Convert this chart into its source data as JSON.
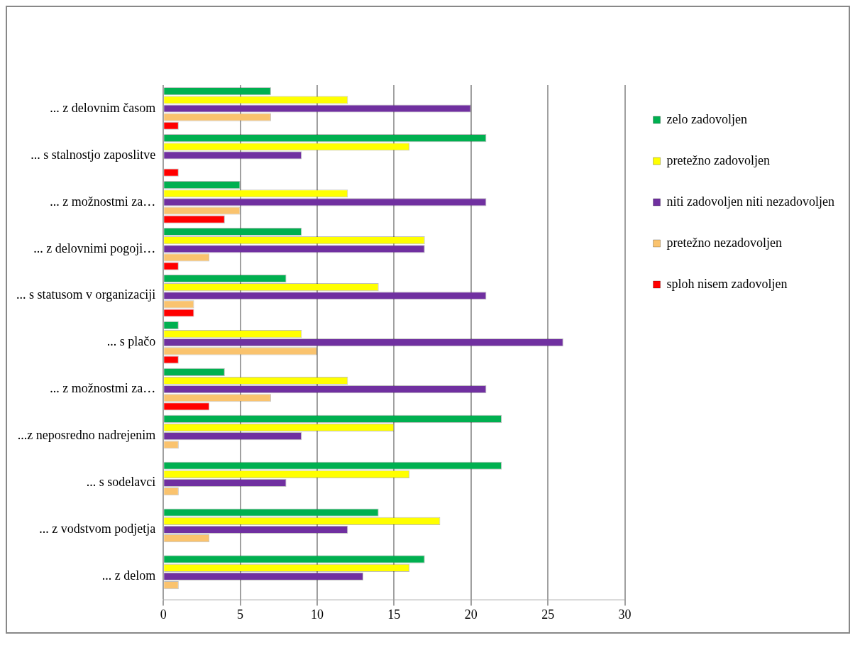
{
  "chart_data": {
    "type": "bar",
    "orientation": "horizontal",
    "categories": [
      "... z delovnim časom",
      "... s stalnostjo zaposlitve",
      "... z možnostmi za…",
      "... z delovnimi pogoji…",
      "... s statusom v organizaciji",
      "... s plačo",
      "... z možnostmi za…",
      "...z neposredno nadrejenim",
      "... s sodelavci",
      "... z vodstvom podjetja",
      "... z delom"
    ],
    "series": [
      {
        "name": "zelo zadovoljen",
        "color": "#00b050",
        "values": [
          7,
          21,
          5,
          9,
          8,
          1,
          4,
          22,
          22,
          14,
          17
        ]
      },
      {
        "name": "pretežno zadovoljen",
        "color": "#ffff00",
        "values": [
          12,
          16,
          12,
          17,
          14,
          9,
          12,
          15,
          16,
          18,
          16
        ]
      },
      {
        "name": "niti zadovoljen niti nezadovoljen",
        "color": "#7030a0",
        "values": [
          20,
          9,
          21,
          17,
          21,
          26,
          21,
          9,
          8,
          12,
          13
        ]
      },
      {
        "name": "pretežno nezadovoljen",
        "color": "#fac36e",
        "values": [
          7,
          0,
          5,
          3,
          2,
          10,
          7,
          1,
          1,
          3,
          1
        ]
      },
      {
        "name": "sploh nisem zadovoljen",
        "color": "#ff0000",
        "values": [
          1,
          1,
          4,
          1,
          2,
          1,
          3,
          0,
          0,
          0,
          0
        ]
      }
    ],
    "xlim": [
      0,
      30
    ],
    "xticks": [
      0,
      5,
      10,
      15,
      20,
      25,
      30
    ],
    "grid": "x",
    "legend": "right"
  }
}
